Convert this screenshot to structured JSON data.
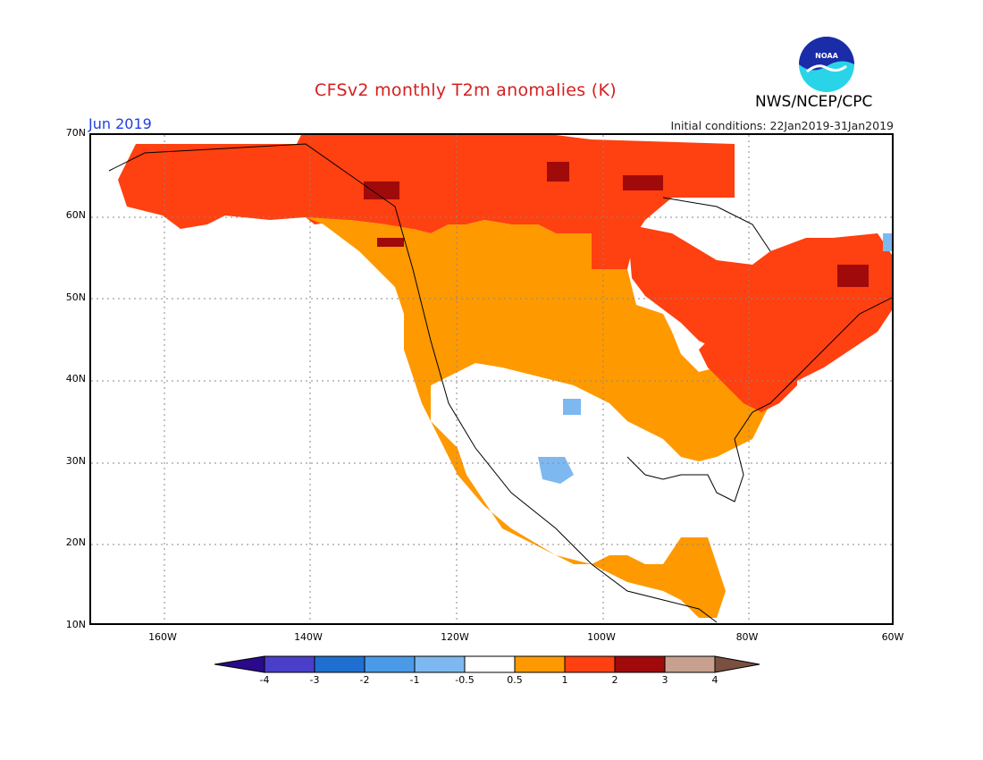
{
  "header": {
    "title": "CFSv2 monthly T2m anomalies (K)",
    "org": "NWS/NCEP/CPC",
    "logo_text": "NOAA",
    "month": "Jun 2019",
    "initial_conditions": "Initial conditions: 22Jan2019-31Jan2019"
  },
  "map": {
    "lat_labels": [
      "70N",
      "60N",
      "50N",
      "40N",
      "30N",
      "20N",
      "10N"
    ],
    "lon_labels": [
      "160W",
      "140W",
      "120W",
      "100W",
      "80W",
      "60W"
    ],
    "extent": {
      "lon_min": -170,
      "lon_max": -60,
      "lat_min": 10,
      "lat_max": 70
    },
    "background_color": "#ffffff",
    "gridline_style": "dotted"
  },
  "legend": {
    "bins": [
      {
        "range": "< -4",
        "color": "#2a0a8a"
      },
      {
        "range": "-4 to -3",
        "color": "#4a3fc8"
      },
      {
        "range": "-3 to -2",
        "color": "#1e6fd0"
      },
      {
        "range": "-2 to -1",
        "color": "#4a9ae8"
      },
      {
        "range": "-1 to -0.5",
        "color": "#7eb8f0"
      },
      {
        "range": "-0.5 to 0.5",
        "color": "#ffffff"
      },
      {
        "range": "0.5 to 1",
        "color": "#ff9900"
      },
      {
        "range": "1 to 2",
        "color": "#ff4010"
      },
      {
        "range": "2 to 3",
        "color": "#a00a0a"
      },
      {
        "range": "3 to 4",
        "color": "#c8a090"
      },
      {
        "range": "> 4",
        "color": "#7a5040"
      }
    ],
    "tick_labels": [
      "-4",
      "-3",
      "-2",
      "-1",
      "-0.5",
      "0.5",
      "1",
      "2",
      "3",
      "4"
    ]
  }
}
